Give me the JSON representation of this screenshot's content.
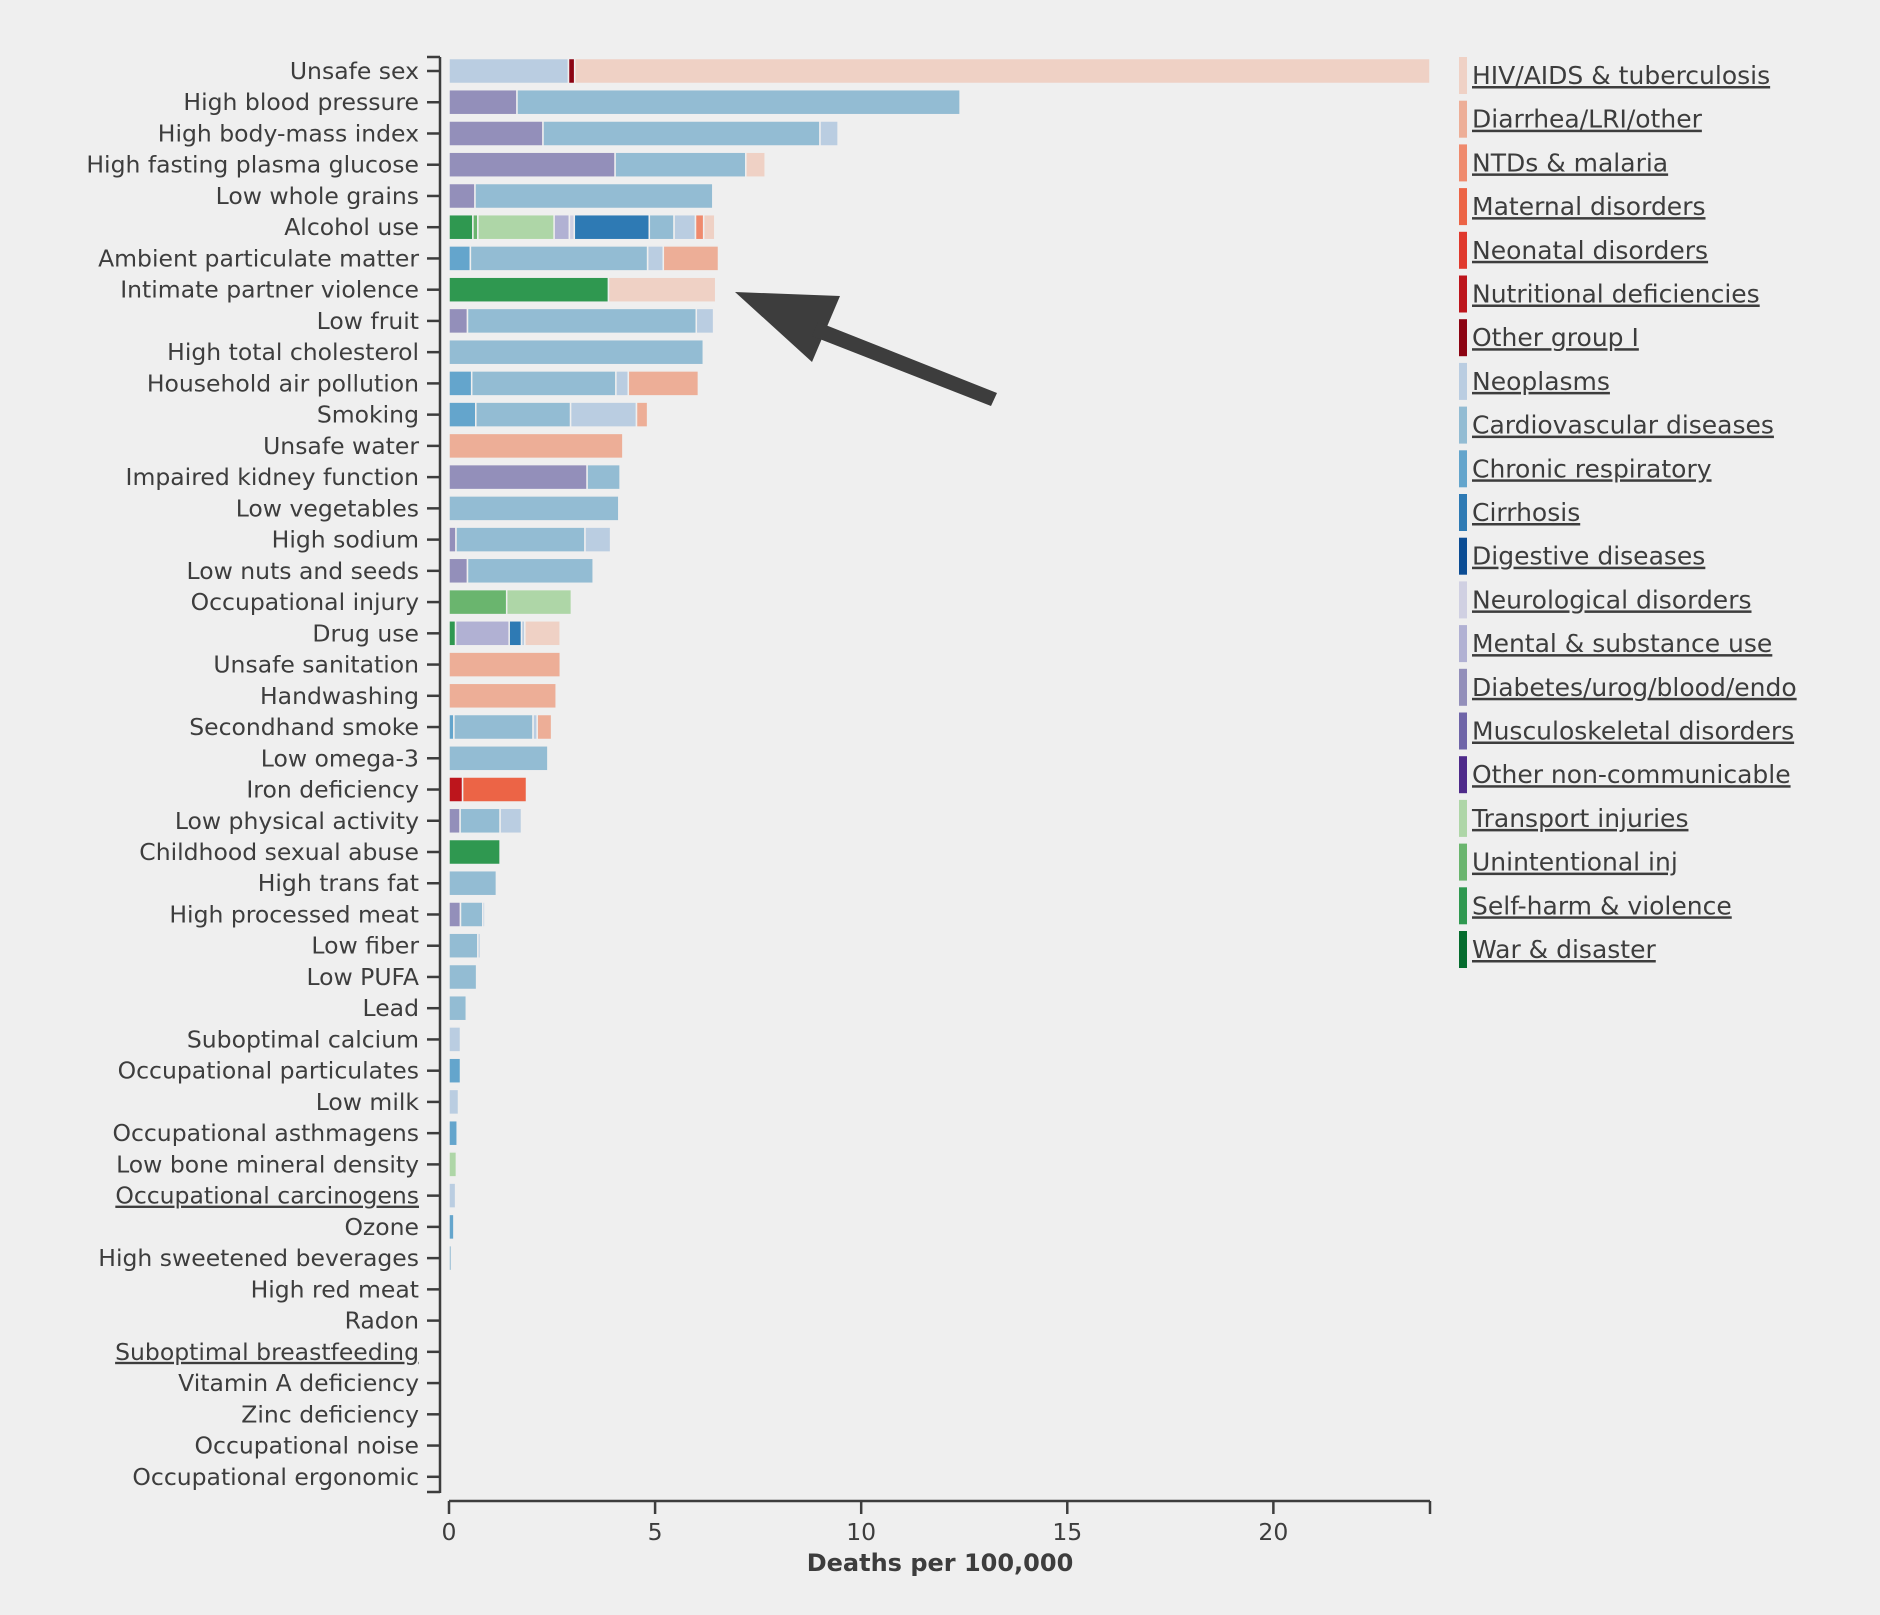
{
  "chart_data": {
    "type": "bar",
    "orientation": "horizontal",
    "stacked": true,
    "xlabel": "Deaths per 100,000",
    "xlim": [
      0,
      23.8
    ],
    "xticks": [
      0,
      5,
      10,
      15,
      20
    ],
    "xtick_labels": [
      "0",
      "5",
      "10",
      "15",
      "20"
    ],
    "legend_placement": "right",
    "causes": [
      {
        "name": "HIV/AIDS & tuberculosis",
        "color": "#efd1c5"
      },
      {
        "name": "Diarrhea/LRI/other",
        "color": "#edae97"
      },
      {
        "name": "NTDs & malaria",
        "color": "#ef8a6d"
      },
      {
        "name": "Maternal disorders",
        "color": "#ec6446"
      },
      {
        "name": "Neonatal disorders",
        "color": "#e0392d"
      },
      {
        "name": "Nutritional deficiencies",
        "color": "#bd151c"
      },
      {
        "name": "Other group I",
        "color": "#8c0312"
      },
      {
        "name": "Neoplasms",
        "color": "#bacde1"
      },
      {
        "name": "Cardiovascular diseases",
        "color": "#93bcd3"
      },
      {
        "name": "Chronic respiratory",
        "color": "#64a5cc"
      },
      {
        "name": "Cirrhosis",
        "color": "#2e7ab4"
      },
      {
        "name": "Digestive diseases",
        "color": "#0c4d94"
      },
      {
        "name": "Neurological disorders",
        "color": "#d0d0e2"
      },
      {
        "name": "Mental & substance use",
        "color": "#b1b1d3"
      },
      {
        "name": "Diabetes/urog/blood/endo",
        "color": "#938fba"
      },
      {
        "name": "Musculoskeletal disorders",
        "color": "#6f65a8"
      },
      {
        "name": "Other non-communicable",
        "color": "#4e2a8a"
      },
      {
        "name": "Transport injuries",
        "color": "#aed6a7"
      },
      {
        "name": "Unintentional inj",
        "color": "#6ab56e"
      },
      {
        "name": "Self-harm & violence",
        "color": "#2f9850"
      },
      {
        "name": "War & disaster",
        "color": "#056c2e"
      }
    ],
    "categories": [
      "Unsafe sex",
      "High blood pressure",
      "High body-mass index",
      "High fasting plasma glucose",
      "Low whole grains",
      "Alcohol use",
      "Ambient particulate matter",
      "Intimate partner violence",
      "Low fruit",
      "High total cholesterol",
      "Household air pollution",
      "Smoking",
      "Unsafe water",
      "Impaired kidney function",
      "Low vegetables",
      "High sodium",
      "Low nuts and seeds",
      "Occupational injury",
      "Drug use",
      "Unsafe sanitation",
      "Handwashing",
      "Secondhand smoke",
      "Low omega-3",
      "Iron deficiency",
      "Low physical activity",
      "Childhood sexual abuse",
      "High trans fat",
      "High processed meat",
      "Low fiber",
      "Low PUFA",
      "Lead",
      "Suboptimal calcium",
      "Occupational particulates",
      "Low milk",
      "Occupational asthmagens",
      "Low bone mineral density",
      "Occupational carcinogens",
      "Ozone",
      "High sweetened beverages",
      "High red meat",
      "Radon",
      "Suboptimal breastfeeding",
      "Vitamin A deficiency",
      "Zinc deficiency",
      "Occupational noise",
      "Occupational ergonomic"
    ],
    "underlined_categories": [
      "Occupational carcinogens",
      "Suboptimal breastfeeding"
    ],
    "bars": [
      [
        [
          "Neoplasms",
          2.9
        ],
        [
          "Other group I",
          0.15
        ],
        [
          "HIV/AIDS & tuberculosis",
          20.75
        ]
      ],
      [
        [
          "Diabetes/urog/blood/endo",
          1.65
        ],
        [
          "Cardiovascular diseases",
          10.75
        ]
      ],
      [
        [
          "Diabetes/urog/blood/endo",
          2.28
        ],
        [
          "Cardiovascular diseases",
          6.72
        ],
        [
          "Neoplasms",
          0.44
        ]
      ],
      [
        [
          "Diabetes/urog/blood/endo",
          4.03
        ],
        [
          "Cardiovascular diseases",
          3.17
        ],
        [
          "HIV/AIDS & tuberculosis",
          0.47
        ]
      ],
      [
        [
          "Diabetes/urog/blood/endo",
          0.63
        ],
        [
          "Cardiovascular diseases",
          5.77
        ]
      ],
      [
        [
          "Self-harm & violence",
          0.58
        ],
        [
          "Unintentional inj",
          0.12
        ],
        [
          "Transport injuries",
          1.85
        ],
        [
          "Mental & substance use",
          0.37
        ],
        [
          "Neurological disorders",
          0.12
        ],
        [
          "Cirrhosis",
          1.82
        ],
        [
          "Cardiovascular diseases",
          0.6
        ],
        [
          "Neoplasms",
          0.52
        ],
        [
          "NTDs & malaria",
          0.2
        ],
        [
          "HIV/AIDS & tuberculosis",
          0.27
        ]
      ],
      [
        [
          "Chronic respiratory",
          0.52
        ],
        [
          "Cardiovascular diseases",
          4.3
        ],
        [
          "Neoplasms",
          0.38
        ],
        [
          "Diarrhea/LRI/other",
          1.34
        ]
      ],
      [
        [
          "Self-harm & violence",
          3.87
        ],
        [
          "HIV/AIDS & tuberculosis",
          2.6
        ]
      ],
      [
        [
          "Diabetes/urog/blood/endo",
          0.45
        ],
        [
          "Cardiovascular diseases",
          5.55
        ],
        [
          "Neoplasms",
          0.42
        ]
      ],
      [
        [
          "Cardiovascular diseases",
          6.17
        ]
      ],
      [
        [
          "Chronic respiratory",
          0.55
        ],
        [
          "Cardiovascular diseases",
          3.5
        ],
        [
          "Neoplasms",
          0.3
        ],
        [
          "Diarrhea/LRI/other",
          1.7
        ]
      ],
      [
        [
          "Chronic respiratory",
          0.65
        ],
        [
          "Cardiovascular diseases",
          2.3
        ],
        [
          "Neoplasms",
          1.6
        ],
        [
          "Diarrhea/LRI/other",
          0.27
        ]
      ],
      [
        [
          "Diarrhea/LRI/other",
          4.22
        ]
      ],
      [
        [
          "Diabetes/urog/blood/endo",
          3.35
        ],
        [
          "Cardiovascular diseases",
          0.8
        ]
      ],
      [
        [
          "Cardiovascular diseases",
          4.12
        ]
      ],
      [
        [
          "Diabetes/urog/blood/endo",
          0.17
        ],
        [
          "Cardiovascular diseases",
          3.13
        ],
        [
          "Neoplasms",
          0.62
        ]
      ],
      [
        [
          "Diabetes/urog/blood/endo",
          0.45
        ],
        [
          "Cardiovascular diseases",
          3.05
        ]
      ],
      [
        [
          "Unintentional inj",
          1.4
        ],
        [
          "Transport injuries",
          1.57
        ]
      ],
      [
        [
          "Self-harm & violence",
          0.16
        ],
        [
          "Mental & substance use",
          1.3
        ],
        [
          "Cirrhosis",
          0.3
        ],
        [
          "Neoplasms",
          0.08
        ],
        [
          "HIV/AIDS & tuberculosis",
          0.86
        ]
      ],
      [
        [
          "Diarrhea/LRI/other",
          2.7
        ]
      ],
      [
        [
          "Diarrhea/LRI/other",
          2.6
        ]
      ],
      [
        [
          "Chronic respiratory",
          0.12
        ],
        [
          "Cardiovascular diseases",
          1.92
        ],
        [
          "Neoplasms",
          0.1
        ],
        [
          "Diarrhea/LRI/other",
          0.35
        ]
      ],
      [
        [
          "Cardiovascular diseases",
          2.4
        ]
      ],
      [
        [
          "Nutritional deficiencies",
          0.33
        ],
        [
          "Maternal disorders",
          1.55
        ]
      ],
      [
        [
          "Diabetes/urog/blood/endo",
          0.27
        ],
        [
          "Cardiovascular diseases",
          0.97
        ],
        [
          "Neoplasms",
          0.52
        ]
      ],
      [
        [
          "Self-harm & violence",
          1.24
        ]
      ],
      [
        [
          "Cardiovascular diseases",
          1.15
        ]
      ],
      [
        [
          "Diabetes/urog/blood/endo",
          0.28
        ],
        [
          "Cardiovascular diseases",
          0.54
        ],
        [
          "Neoplasms",
          0.05
        ]
      ],
      [
        [
          "Cardiovascular diseases",
          0.7
        ],
        [
          "Neoplasms",
          0.06
        ]
      ],
      [
        [
          "Cardiovascular diseases",
          0.67
        ]
      ],
      [
        [
          "Cardiovascular diseases",
          0.42
        ]
      ],
      [
        [
          "Neoplasms",
          0.28
        ]
      ],
      [
        [
          "Chronic respiratory",
          0.28
        ]
      ],
      [
        [
          "Neoplasms",
          0.23
        ]
      ],
      [
        [
          "Chronic respiratory",
          0.2
        ]
      ],
      [
        [
          "Transport injuries",
          0.18
        ]
      ],
      [
        [
          "Neoplasms",
          0.16
        ]
      ],
      [
        [
          "Chronic respiratory",
          0.12
        ]
      ],
      [
        [
          "Cardiovascular diseases",
          0.06
        ]
      ],
      [],
      [
        [
          "Neoplasms",
          0.03
        ]
      ],
      [],
      [],
      [],
      [],
      []
    ],
    "annotation": "arrow pointing to Intimate partner violence bar"
  }
}
